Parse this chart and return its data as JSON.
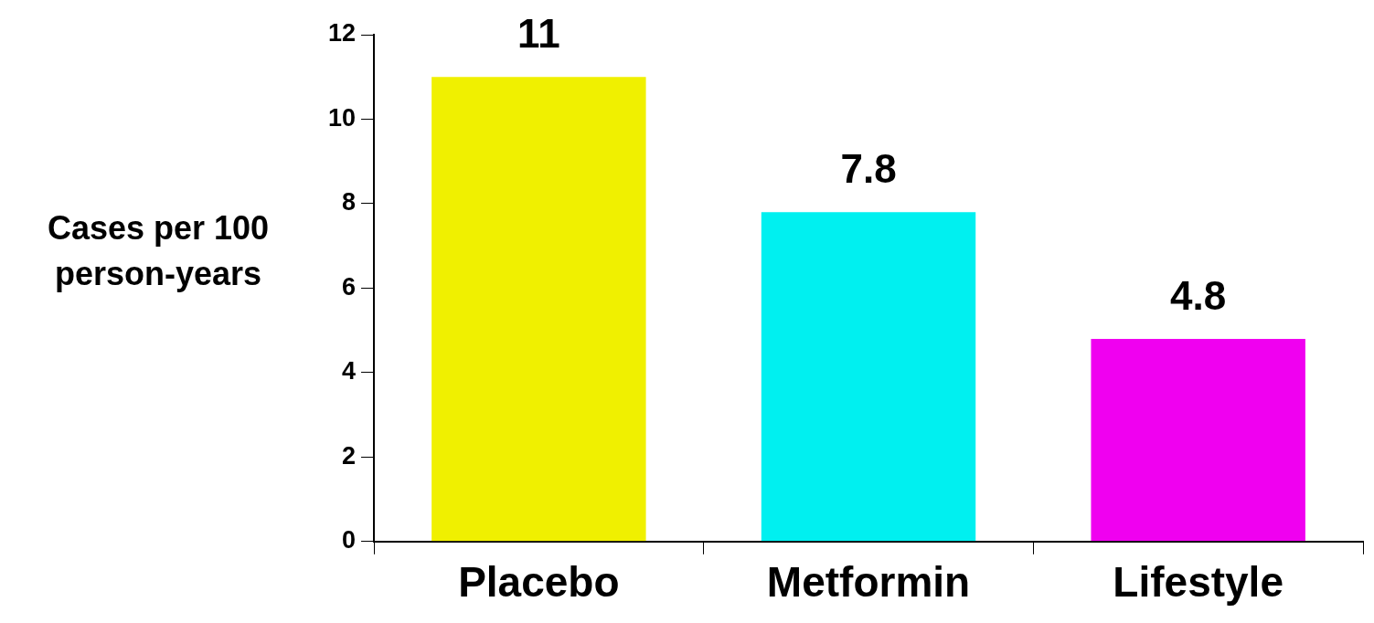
{
  "chart_data": {
    "type": "bar",
    "ylabel": "Cases per 100 person-years",
    "categories": [
      "Placebo",
      "Metformin",
      "Lifestyle"
    ],
    "values": [
      11,
      7.8,
      4.8
    ],
    "colors": [
      "#f0f000",
      "#00f0f0",
      "#f000f0"
    ],
    "ylim": [
      0,
      12
    ],
    "yticks": [
      0,
      2,
      4,
      6,
      8,
      10,
      12
    ],
    "data_labels": true,
    "grid": false,
    "legend": false
  }
}
